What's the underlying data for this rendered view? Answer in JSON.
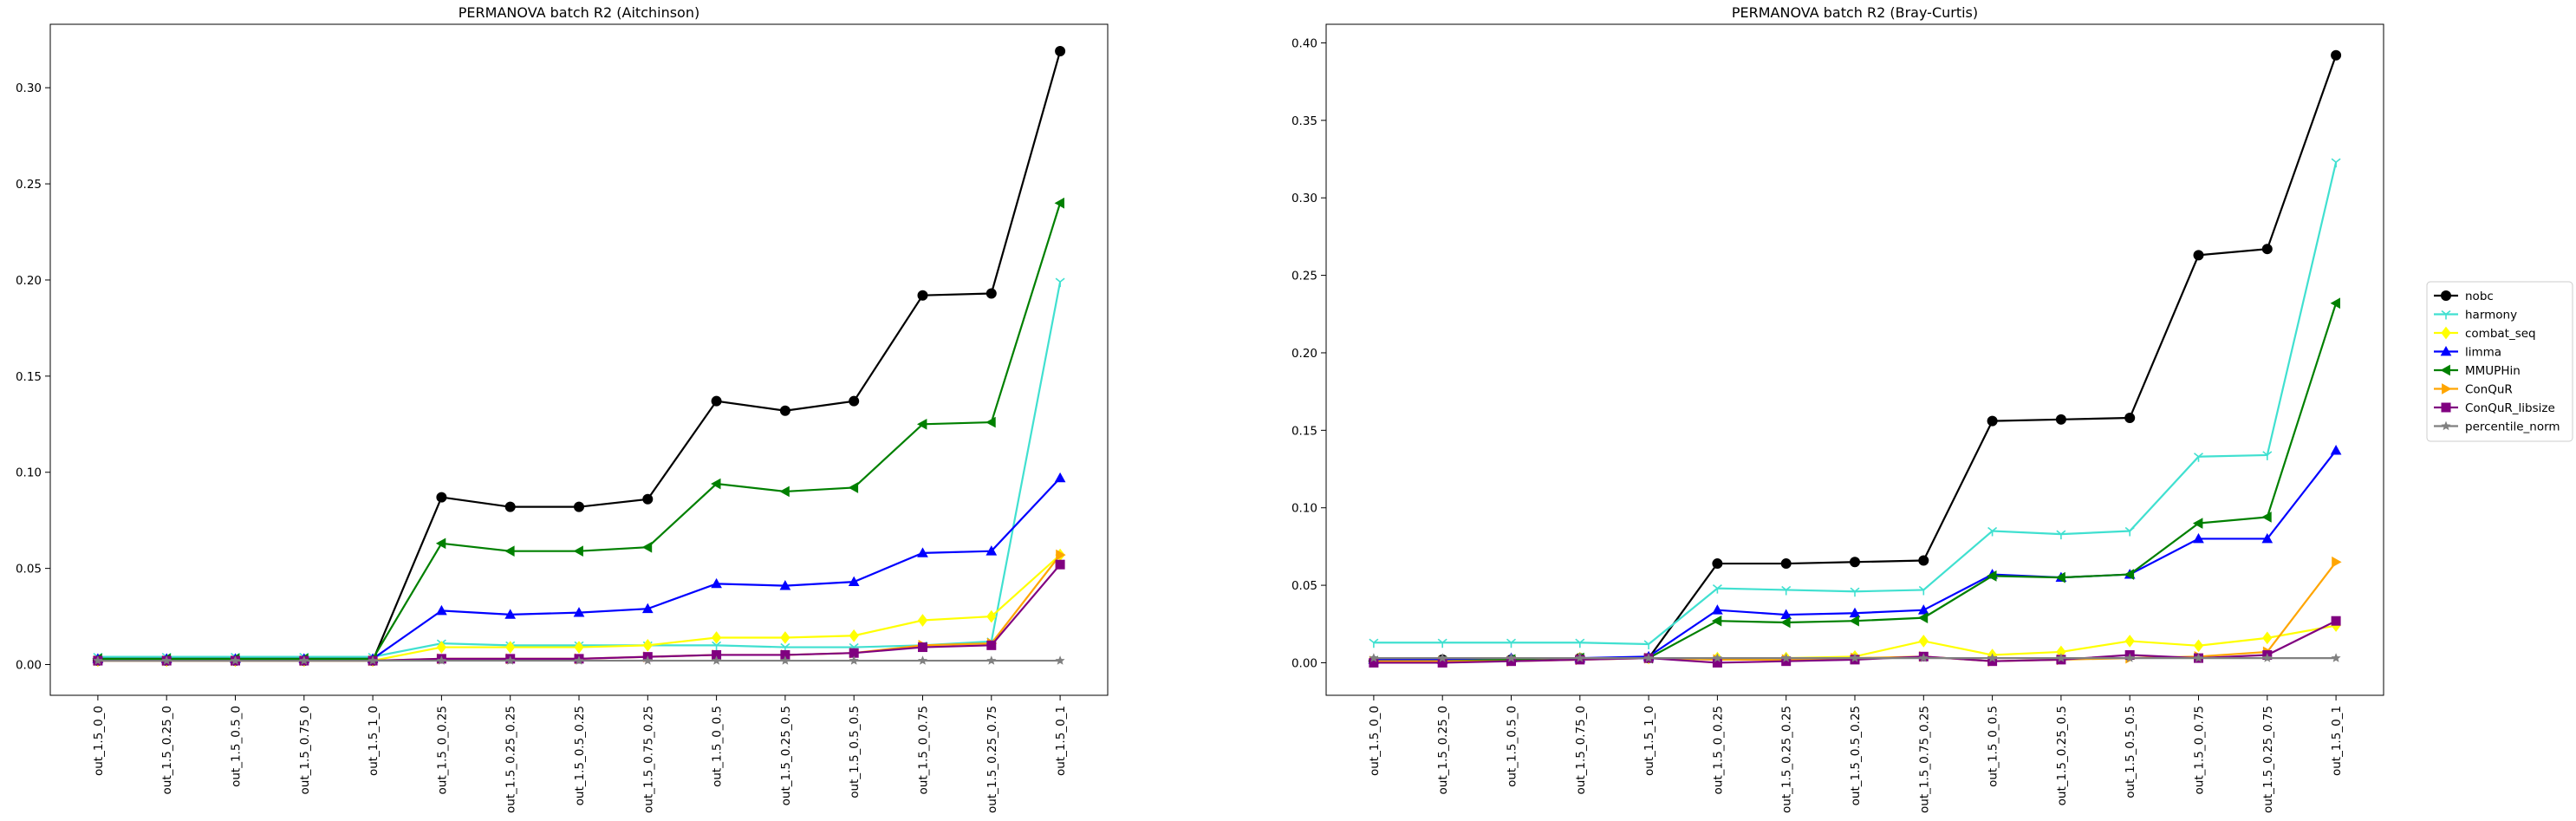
{
  "chart_data": [
    {
      "type": "line",
      "title": "PERMANOVA batch R2 (Aitchinson)",
      "xlabel": "",
      "ylabel": "",
      "ylim": [
        -0.016,
        0.333
      ],
      "yticks": [
        0.0,
        0.05,
        0.1,
        0.15,
        0.2,
        0.25,
        0.3
      ],
      "ytick_labels": [
        "0.00",
        "0.05",
        "0.10",
        "0.15",
        "0.20",
        "0.25",
        "0.30"
      ],
      "grid": false,
      "categories": [
        "out_1.5_0_0",
        "out_1.5_0.25_0",
        "out_1.5_0.5_0",
        "out_1.5_0.75_0",
        "out_1.5_1_0",
        "out_1.5_0_0.25",
        "out_1.5_0.25_0.25",
        "out_1.5_0.5_0.25",
        "out_1.5_0.75_0.25",
        "out_1.5_0_0.5",
        "out_1.5_0.25_0.5",
        "out_1.5_0.5_0.5",
        "out_1.5_0_0.75",
        "out_1.5_0.25_0.75",
        "out_1.5_0_1"
      ],
      "series": [
        {
          "name": "nobc",
          "values": [
            0.002,
            0.002,
            0.002,
            0.002,
            0.002,
            0.087,
            0.082,
            0.082,
            0.086,
            0.137,
            0.132,
            0.137,
            0.192,
            0.193,
            0.319
          ]
        },
        {
          "name": "harmony",
          "values": [
            0.004,
            0.004,
            0.004,
            0.004,
            0.004,
            0.011,
            0.01,
            0.01,
            0.01,
            0.01,
            0.009,
            0.009,
            0.01,
            0.012,
            0.199
          ]
        },
        {
          "name": "combat_seq",
          "values": [
            0.002,
            0.002,
            0.002,
            0.002,
            0.002,
            0.009,
            0.009,
            0.009,
            0.01,
            0.014,
            0.014,
            0.015,
            0.023,
            0.025,
            0.057
          ]
        },
        {
          "name": "limma",
          "values": [
            0.003,
            0.003,
            0.003,
            0.003,
            0.003,
            0.028,
            0.026,
            0.027,
            0.029,
            0.042,
            0.041,
            0.043,
            0.058,
            0.059,
            0.097
          ]
        },
        {
          "name": "MMUPHin",
          "values": [
            0.003,
            0.003,
            0.003,
            0.003,
            0.003,
            0.063,
            0.059,
            0.059,
            0.061,
            0.094,
            0.09,
            0.092,
            0.125,
            0.126,
            0.24
          ]
        },
        {
          "name": "ConQuR",
          "values": [
            0.002,
            0.002,
            0.002,
            0.002,
            0.002,
            0.003,
            0.003,
            0.003,
            0.004,
            0.005,
            0.005,
            0.006,
            0.01,
            0.011,
            0.057
          ]
        },
        {
          "name": "ConQuR_libsize",
          "values": [
            0.002,
            0.002,
            0.002,
            0.002,
            0.002,
            0.003,
            0.003,
            0.003,
            0.004,
            0.005,
            0.005,
            0.006,
            0.009,
            0.01,
            0.052
          ]
        },
        {
          "name": "percentile_norm",
          "values": [
            0.002,
            0.002,
            0.002,
            0.002,
            0.002,
            0.002,
            0.002,
            0.002,
            0.002,
            0.002,
            0.002,
            0.002,
            0.002,
            0.002,
            0.002
          ]
        }
      ]
    },
    {
      "type": "line",
      "title": "PERMANOVA batch R2 (Bray-Curtis)",
      "xlabel": "",
      "ylabel": "",
      "ylim": [
        -0.021,
        0.412
      ],
      "yticks": [
        0.0,
        0.05,
        0.1,
        0.15,
        0.2,
        0.25,
        0.3,
        0.35,
        0.4
      ],
      "ytick_labels": [
        "0.00",
        "0.05",
        "0.10",
        "0.15",
        "0.20",
        "0.25",
        "0.30",
        "0.35",
        "0.40"
      ],
      "grid": false,
      "categories": [
        "out_1.5_0_0",
        "out_1.5_0.25_0",
        "out_1.5_0.5_0",
        "out_1.5_0.75_0",
        "out_1.5_1_0",
        "out_1.5_0_0.25",
        "out_1.5_0.25_0.25",
        "out_1.5_0.5_0.25",
        "out_1.5_0.75_0.25",
        "out_1.5_0_0.5",
        "out_1.5_0.25_0.5",
        "out_1.5_0.5_0.5",
        "out_1.5_0_0.75",
        "out_1.5_0.25_0.75",
        "out_1.5_0_1"
      ],
      "series": [
        {
          "name": "nobc",
          "values": [
            0.001,
            0.002,
            0.002,
            0.003,
            0.003,
            0.064,
            0.064,
            0.065,
            0.066,
            0.156,
            0.157,
            0.158,
            0.263,
            0.267,
            0.392
          ]
        },
        {
          "name": "harmony",
          "values": [
            0.013,
            0.013,
            0.013,
            0.013,
            0.012,
            0.048,
            0.047,
            0.046,
            0.047,
            0.085,
            0.083,
            0.085,
            0.133,
            0.134,
            0.323
          ]
        },
        {
          "name": "combat_seq",
          "values": [
            0.001,
            0.001,
            0.002,
            0.003,
            0.003,
            0.003,
            0.003,
            0.004,
            0.014,
            0.005,
            0.007,
            0.014,
            0.011,
            0.016,
            0.024
          ]
        },
        {
          "name": "limma",
          "values": [
            0.002,
            0.002,
            0.003,
            0.003,
            0.004,
            0.034,
            0.031,
            0.032,
            0.034,
            0.057,
            0.055,
            0.057,
            0.08,
            0.08,
            0.137
          ]
        },
        {
          "name": "MMUPHin",
          "values": [
            0.001,
            0.001,
            0.002,
            0.003,
            0.003,
            0.027,
            0.026,
            0.027,
            0.029,
            0.056,
            0.055,
            0.057,
            0.09,
            0.094,
            0.232
          ]
        },
        {
          "name": "ConQuR",
          "values": [
            0.001,
            0.001,
            0.001,
            0.002,
            0.003,
            0.002,
            0.002,
            0.003,
            0.004,
            0.001,
            0.002,
            0.003,
            0.004,
            0.007,
            0.065
          ]
        },
        {
          "name": "ConQuR_libsize",
          "values": [
            0.0,
            0.0,
            0.001,
            0.002,
            0.003,
            0.0,
            0.001,
            0.002,
            0.004,
            0.001,
            0.002,
            0.005,
            0.003,
            0.005,
            0.027
          ]
        },
        {
          "name": "percentile_norm",
          "values": [
            0.003,
            0.003,
            0.003,
            0.003,
            0.003,
            0.003,
            0.003,
            0.003,
            0.003,
            0.003,
            0.003,
            0.003,
            0.003,
            0.003,
            0.003
          ]
        }
      ]
    }
  ],
  "legend": {
    "placement": "right-center",
    "entries": [
      {
        "name": "nobc",
        "color": "#000000",
        "marker": "circle"
      },
      {
        "name": "harmony",
        "color": "#40e0d0",
        "marker": "tri-down"
      },
      {
        "name": "combat_seq",
        "color": "#ffff00",
        "marker": "diamond"
      },
      {
        "name": "limma",
        "color": "#0000ff",
        "marker": "triangle-up"
      },
      {
        "name": "MMUPHin",
        "color": "#008000",
        "marker": "triangle-left"
      },
      {
        "name": "ConQuR",
        "color": "#ffa500",
        "marker": "triangle-right"
      },
      {
        "name": "ConQuR_libsize",
        "color": "#800080",
        "marker": "square"
      },
      {
        "name": "percentile_norm",
        "color": "#808080",
        "marker": "star"
      }
    ]
  }
}
